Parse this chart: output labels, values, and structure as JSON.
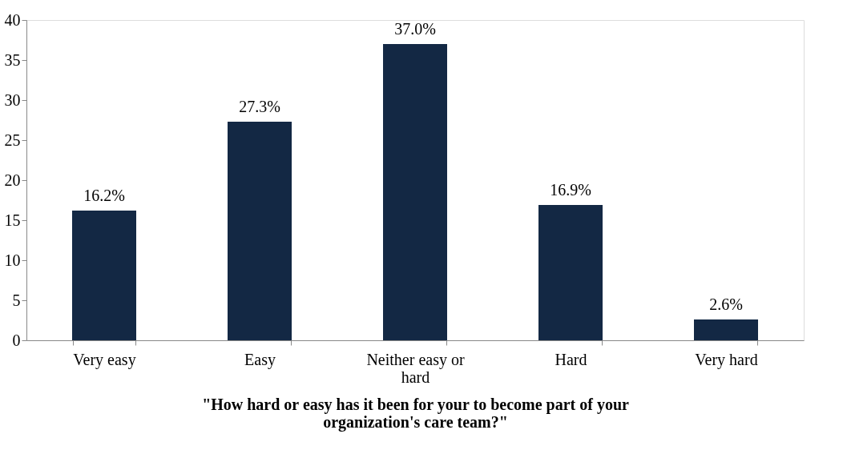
{
  "chart_data": {
    "type": "bar",
    "xlabel": "\"How hard or easy has it been for your to become part of your organization's care team?\"",
    "categories": [
      "Very easy",
      "Easy",
      "Neither easy or hard",
      "Hard",
      "Very hard"
    ],
    "values": [
      16.2,
      27.3,
      37.0,
      16.9,
      2.6
    ],
    "value_labels": [
      "16.2%",
      "27.3%",
      "37.0%",
      "16.9%",
      "2.6%"
    ],
    "color": "#132844",
    "ylim": [
      0,
      40
    ],
    "yticks": [
      0,
      5,
      10,
      15,
      20,
      25,
      30,
      35,
      40
    ],
    "grid": false
  }
}
